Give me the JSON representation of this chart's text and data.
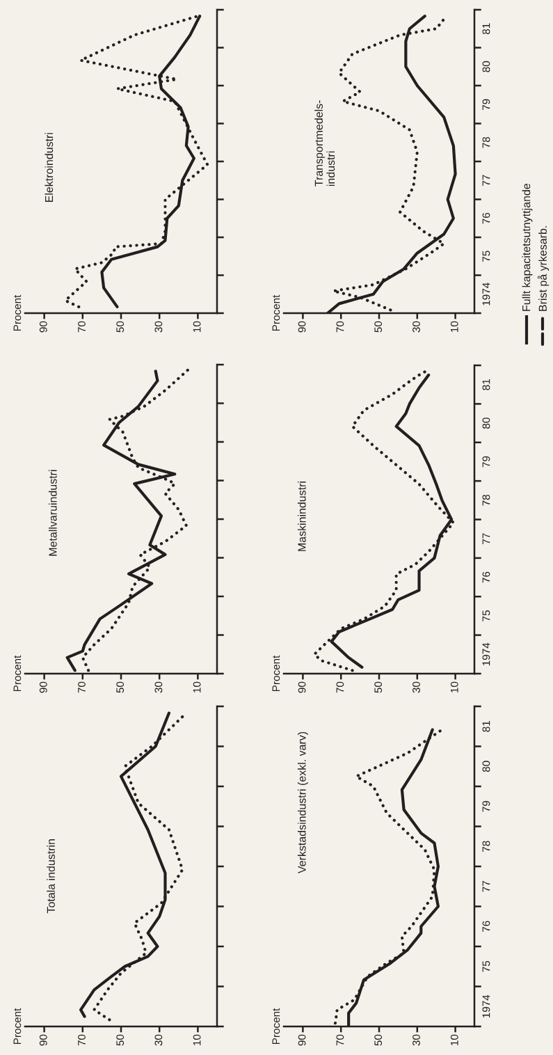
{
  "chart_data": [
    {
      "type": "line",
      "orientation": "horizontal",
      "title": "Totala industrin",
      "ylabel": "Procent",
      "xlim": [
        100,
        0
      ],
      "xticks": [
        10,
        30,
        50,
        70,
        90
      ],
      "ylim": [
        "1974-01",
        "1982-01"
      ],
      "tick_labels": "x",
      "grid": false,
      "series": [
        {
          "color": "#231f20",
          "line_style": "solid",
          "x": [
            "1974-04",
            "1974-06",
            "1974-12",
            "1975-04",
            "1975-07",
            "1975-10",
            "1976-01",
            "1976-05",
            "1976-10",
            "1977-03",
            "1977-11",
            "1978-12",
            "1980-04",
            "1981-01",
            "1981-11"
          ],
          "values": [
            69,
            71,
            64,
            55,
            48,
            36,
            31,
            36,
            30,
            27,
            27,
            36,
            50,
            32,
            25
          ]
        },
        {
          "color": "#231f20",
          "line_style": "dotted",
          "x": [
            "1974-03",
            "1974-06",
            "1974-12",
            "1975-05",
            "1975-11",
            "1976-03",
            "1976-08",
            "1976-11",
            "1977-02",
            "1977-12",
            "1978-12",
            "1979-08",
            "1980-07",
            "1981-01",
            "1981-11"
          ],
          "values": [
            56,
            64,
            57,
            50,
            37,
            39,
            43,
            36,
            29,
            18,
            25,
            41,
            48,
            34,
            16
          ]
        }
      ]
    },
    {
      "type": "line",
      "orientation": "horizontal",
      "title": "Metallvaruindustri",
      "ylabel": "Procent",
      "xlim": [
        100,
        0
      ],
      "xticks": [
        10,
        30,
        50,
        70,
        90
      ],
      "ylim": [
        "1974-01",
        "1982-01"
      ],
      "tick_labels": "x",
      "grid": false,
      "series": [
        {
          "color": "#231f20",
          "line_style": "solid",
          "x": [
            "1974-02",
            "1974-06",
            "1974-08",
            "1974-10",
            "1975-06",
            "1975-10",
            "1976-05",
            "1976-08",
            "1977-02",
            "1977-05",
            "1978-02",
            "1978-12",
            "1979-03",
            "1979-06",
            "1979-12",
            "1980-07",
            "1980-12",
            "1981-08",
            "1981-11"
          ],
          "values": [
            74,
            78,
            70,
            69,
            61,
            51,
            34,
            46,
            27,
            35,
            29,
            43,
            22,
            41,
            59,
            51,
            41,
            31,
            32
          ]
        },
        {
          "color": "#231f20",
          "line_style": "dotted",
          "x": [
            "1974-02",
            "1974-06",
            "1974-10",
            "1975-03",
            "1975-11",
            "1976-04",
            "1976-10",
            "1977-02",
            "1977-06",
            "1977-11",
            "1978-04",
            "1978-09",
            "1978-12",
            "1979-01",
            "1979-05",
            "1979-08",
            "1980-04",
            "1980-08",
            "1980-09",
            "1980-12",
            "1981-05",
            "1981-12"
          ],
          "values": [
            67,
            70,
            64,
            55,
            46,
            44,
            35,
            40,
            27,
            16,
            20,
            27,
            22,
            25,
            41,
            44,
            49,
            56,
            49,
            38,
            27,
            14
          ]
        }
      ]
    },
    {
      "type": "line",
      "orientation": "horizontal",
      "title": "Elektroindustri",
      "ylabel": "Procent",
      "xlim": [
        100,
        0
      ],
      "xticks": [
        10,
        30,
        50,
        70,
        90
      ],
      "ylim": [
        "1974-01",
        "1982-01"
      ],
      "tick_labels": "x",
      "grid": false,
      "series": [
        {
          "color": "#231f20",
          "line_style": "solid",
          "x": [
            "1974-03",
            "1974-09",
            "1975-02",
            "1975-06",
            "1975-08",
            "1975-10",
            "1975-12",
            "1976-07",
            "1976-11",
            "1977-07",
            "1978-02",
            "1978-06",
            "1978-12",
            "1979-06",
            "1979-12",
            "1980-04",
            "1980-10",
            "1981-05",
            "1981-11"
          ],
          "values": [
            52,
            59,
            60,
            55,
            43,
            31,
            27,
            26,
            20,
            18,
            12,
            16,
            15,
            19,
            29,
            30,
            22,
            14,
            9
          ]
        },
        {
          "color": "#231f20",
          "line_style": "dotted",
          "x": [
            "1974-03",
            "1974-05",
            "1974-11",
            "1975-03",
            "1975-05",
            "1975-08",
            "1975-10",
            "1975-11",
            "1976-03",
            "1977-01",
            "1977-05",
            "1977-12",
            "1978-08",
            "1979-08",
            "1979-12",
            "1980-03",
            "1980-09",
            "1981-05",
            "1981-11"
          ],
          "values": [
            72,
            79,
            68,
            74,
            60,
            54,
            53,
            29,
            27,
            27,
            19,
            5,
            12,
            22,
            52,
            21,
            71,
            43,
            10
          ]
        }
      ]
    },
    {
      "type": "line",
      "orientation": "horizontal",
      "title": "Verkstadsindustri (exkl. varv)",
      "ylabel": "Procent",
      "xlim": [
        100,
        0
      ],
      "xticks": [
        10,
        30,
        50,
        70,
        90
      ],
      "ylim": [
        "1974-01",
        "1982-01"
      ],
      "yticks": [
        {
          "value": "1974-01",
          "label": null
        },
        {
          "value": "1974-07",
          "label": "1974"
        },
        {
          "value": "1975-01",
          "label": null
        },
        {
          "value": "1975-07",
          "label": "75"
        },
        {
          "value": "1976-01",
          "label": null
        },
        {
          "value": "1976-07",
          "label": "76"
        },
        {
          "value": "1977-01",
          "label": null
        },
        {
          "value": "1977-07",
          "label": "77"
        },
        {
          "value": "1978-01",
          "label": null
        },
        {
          "value": "1978-07",
          "label": "78"
        },
        {
          "value": "1979-01",
          "label": null
        },
        {
          "value": "1979-07",
          "label": "79"
        },
        {
          "value": "1980-01",
          "label": null
        },
        {
          "value": "1980-07",
          "label": "80"
        },
        {
          "value": "1981-01",
          "label": null
        },
        {
          "value": "1981-07",
          "label": "81"
        },
        {
          "value": "1982-01",
          "label": null
        }
      ],
      "grid": false,
      "series": [
        {
          "color": "#231f20",
          "line_style": "solid",
          "x": [
            "1974-01",
            "1974-05",
            "1974-08",
            "1975-03",
            "1975-08",
            "1975-12",
            "1976-05",
            "1976-07",
            "1977-01",
            "1977-07",
            "1978-01",
            "1978-08",
            "1978-11",
            "1979-06",
            "1979-12",
            "1980-09",
            "1981-06"
          ],
          "values": [
            66,
            66,
            62,
            58,
            44,
            35,
            28,
            28,
            19,
            21,
            19,
            21,
            28,
            37,
            38,
            28,
            22
          ]
        },
        {
          "color": "#231f20",
          "line_style": "dotted",
          "x": [
            "1974-02",
            "1974-06",
            "1974-09",
            "1975-04",
            "1975-08",
            "1975-11",
            "1976-04",
            "1976-07",
            "1977-04",
            "1977-12",
            "1978-06",
            "1979-05",
            "1980-01",
            "1980-04",
            "1980-11",
            "1981-06"
          ],
          "values": [
            73,
            72,
            63,
            56,
            46,
            37,
            38,
            33,
            22,
            21,
            26,
            46,
            53,
            62,
            35,
            17
          ]
        }
      ]
    },
    {
      "type": "line",
      "orientation": "horizontal",
      "title": "Maskinindustri",
      "ylabel": "Procent",
      "xlim": [
        100,
        0
      ],
      "xticks": [
        10,
        30,
        50,
        70,
        90
      ],
      "ylim": [
        "1974-01",
        "1982-01"
      ],
      "yticks": [
        {
          "value": "1974-01",
          "label": null
        },
        {
          "value": "1974-07",
          "label": "1974"
        },
        {
          "value": "1975-01",
          "label": null
        },
        {
          "value": "1975-07",
          "label": "75"
        },
        {
          "value": "1976-01",
          "label": null
        },
        {
          "value": "1976-07",
          "label": "76"
        },
        {
          "value": "1977-01",
          "label": null
        },
        {
          "value": "1977-07",
          "label": "77"
        },
        {
          "value": "1978-01",
          "label": null
        },
        {
          "value": "1978-07",
          "label": "78"
        },
        {
          "value": "1979-01",
          "label": null
        },
        {
          "value": "1979-07",
          "label": "79"
        },
        {
          "value": "1980-01",
          "label": null
        },
        {
          "value": "1980-07",
          "label": "80"
        },
        {
          "value": "1981-01",
          "label": null
        },
        {
          "value": "1981-07",
          "label": "81"
        },
        {
          "value": "1982-01",
          "label": null
        }
      ],
      "grid": false,
      "series": [
        {
          "color": "#231f20",
          "line_style": "solid",
          "x": [
            "1974-03",
            "1974-06",
            "1974-11",
            "1975-02",
            "1975-06",
            "1975-09",
            "1975-12",
            "1976-03",
            "1976-09",
            "1977-01",
            "1977-08",
            "1978-01",
            "1978-07",
            "1978-12",
            "1979-06",
            "1979-12",
            "1980-06",
            "1980-10",
            "1981-01",
            "1981-06",
            "1981-10"
          ],
          "values": [
            59,
            66,
            75,
            71,
            55,
            43,
            40,
            29,
            29,
            21,
            18,
            12,
            17,
            20,
            24,
            29,
            41,
            36,
            34,
            29,
            24
          ]
        },
        {
          "color": "#231f20",
          "line_style": "dotted",
          "x": [
            "1974-02",
            "1974-05",
            "1974-07",
            "1974-11",
            "1975-03",
            "1975-06",
            "1975-10",
            "1976-03",
            "1976-08",
            "1976-11",
            "1977-03",
            "1977-12",
            "1978-05",
            "1978-12",
            "1979-06",
            "1979-12",
            "1980-06",
            "1980-11",
            "1981-04",
            "1981-08",
            "1981-10",
            "1981-11"
          ],
          "values": [
            64,
            80,
            84,
            77,
            70,
            58,
            47,
            41,
            41,
            31,
            24,
            11,
            19,
            29,
            41,
            53,
            64,
            58,
            43,
            34,
            29,
            26
          ]
        }
      ]
    },
    {
      "type": "line",
      "orientation": "horizontal",
      "title": "Transportmedels-\nindustri",
      "ylabel": "Procent",
      "xlim": [
        100,
        0
      ],
      "xticks": [
        10,
        30,
        50,
        70,
        90
      ],
      "ylim": [
        "1974-01",
        "1982-01"
      ],
      "yticks": [
        {
          "value": "1974-01",
          "label": null
        },
        {
          "value": "1974-07",
          "label": "1974"
        },
        {
          "value": "1975-01",
          "label": null
        },
        {
          "value": "1975-07",
          "label": "75"
        },
        {
          "value": "1976-01",
          "label": null
        },
        {
          "value": "1976-07",
          "label": "76"
        },
        {
          "value": "1977-01",
          "label": null
        },
        {
          "value": "1977-07",
          "label": "77"
        },
        {
          "value": "1978-01",
          "label": null
        },
        {
          "value": "1978-07",
          "label": "78"
        },
        {
          "value": "1979-01",
          "label": null
        },
        {
          "value": "1979-07",
          "label": "79"
        },
        {
          "value": "1980-01",
          "label": null
        },
        {
          "value": "1980-07",
          "label": "80"
        },
        {
          "value": "1981-01",
          "label": null
        },
        {
          "value": "1981-07",
          "label": "81"
        },
        {
          "value": "1982-01",
          "label": null
        }
      ],
      "grid": false,
      "legend": "right",
      "series": [
        {
          "name": "Fullt kapacitetsutnyttjande",
          "color": "#231f20",
          "line_style": "solid",
          "x": [
            "1974-01",
            "1974-04",
            "1974-07",
            "1974-11",
            "1975-03",
            "1975-08",
            "1976-02",
            "1976-07",
            "1977-01",
            "1977-09",
            "1978-06",
            "1979-03",
            "1980-01",
            "1980-07",
            "1981-03",
            "1981-07",
            "1981-11"
          ],
          "values": [
            77,
            71,
            53,
            48,
            37,
            30,
            16,
            11,
            14,
            10,
            11,
            16,
            30,
            36,
            36,
            34,
            26
          ]
        },
        {
          "name": "Brist på yrkesarb.",
          "color": "#231f20",
          "line_style": "dotted",
          "x": [
            "1974-02",
            "1974-06",
            "1974-08",
            "1974-10",
            "1975-03",
            "1975-08",
            "1975-11",
            "1976-03",
            "1976-09",
            "1977-05",
            "1978-04",
            "1978-11",
            "1979-05",
            "1979-08",
            "1979-11",
            "1980-05",
            "1980-11",
            "1981-05",
            "1981-07",
            "1981-10"
          ],
          "values": [
            44,
            60,
            74,
            53,
            36,
            23,
            16,
            27,
            39,
            32,
            30,
            34,
            50,
            69,
            60,
            71,
            64,
            39,
            20,
            16
          ]
        }
      ]
    }
  ]
}
